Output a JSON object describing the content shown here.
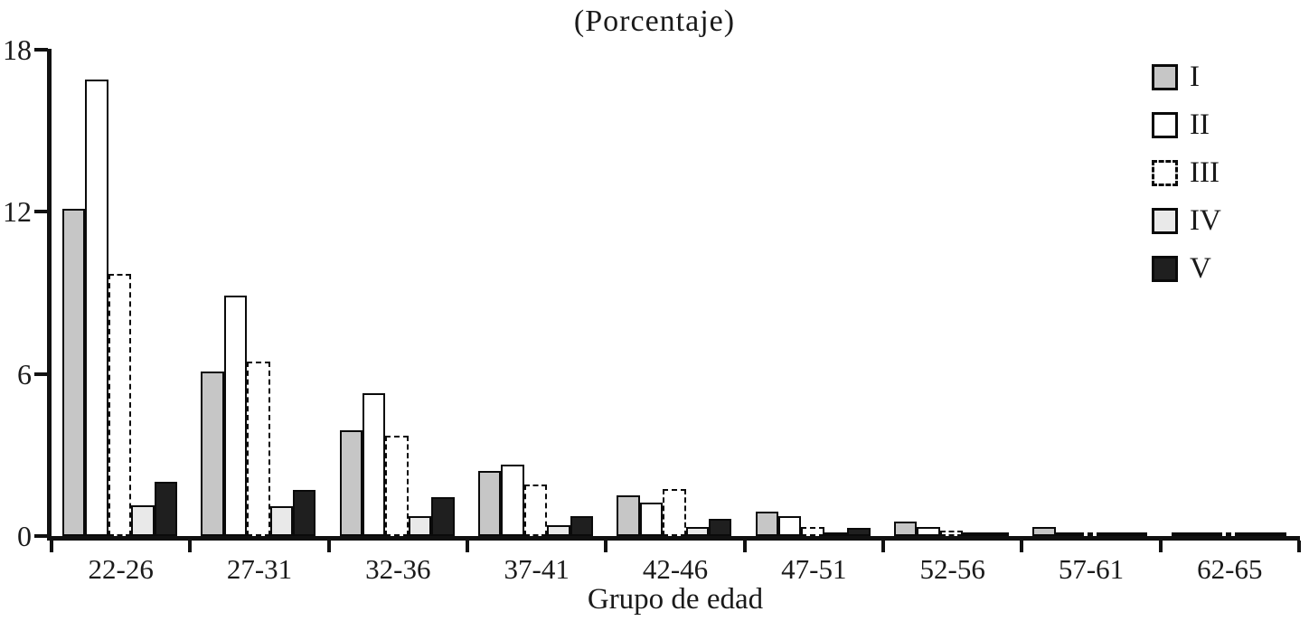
{
  "chart_data": {
    "type": "bar",
    "title": "(Porcentaje)",
    "xlabel": "Grupo de edad",
    "ylabel": "",
    "ylim": [
      0,
      18
    ],
    "yticks": [
      0,
      6,
      12,
      18
    ],
    "grid": false,
    "legend_position": "top-right",
    "axis_color": "#111111",
    "bar_border_color": "#0a0a0a",
    "categories": [
      "22-26",
      "27-31",
      "32-36",
      "37-41",
      "42-46",
      "47-51",
      "52-56",
      "57-61",
      "62-65"
    ],
    "series": [
      {
        "name": "I",
        "fill": "#c6c6c6",
        "border_style": "solid",
        "values": [
          12.1,
          6.1,
          3.9,
          2.4,
          1.5,
          0.9,
          0.55,
          0.35,
          0.1
        ]
      },
      {
        "name": "II",
        "fill": "#ffffff",
        "border_style": "solid",
        "values": [
          16.9,
          8.9,
          5.3,
          2.65,
          1.25,
          0.75,
          0.35,
          0.1,
          0.08
        ]
      },
      {
        "name": "III",
        "fill": "#ffffff",
        "border_style": "dashed",
        "values": [
          9.7,
          6.45,
          3.7,
          1.9,
          1.75,
          0.35,
          0.2,
          0.08,
          0.08
        ]
      },
      {
        "name": "IV",
        "fill": "#e9e9e9",
        "border_style": "solid",
        "values": [
          1.15,
          1.1,
          0.75,
          0.4,
          0.33,
          0.1,
          0.08,
          0.05,
          0.05
        ]
      },
      {
        "name": "V",
        "fill": "#1f1f1f",
        "border_style": "solid",
        "values": [
          2.0,
          1.7,
          1.45,
          0.75,
          0.65,
          0.3,
          0.12,
          0.1,
          0.08
        ]
      }
    ]
  }
}
